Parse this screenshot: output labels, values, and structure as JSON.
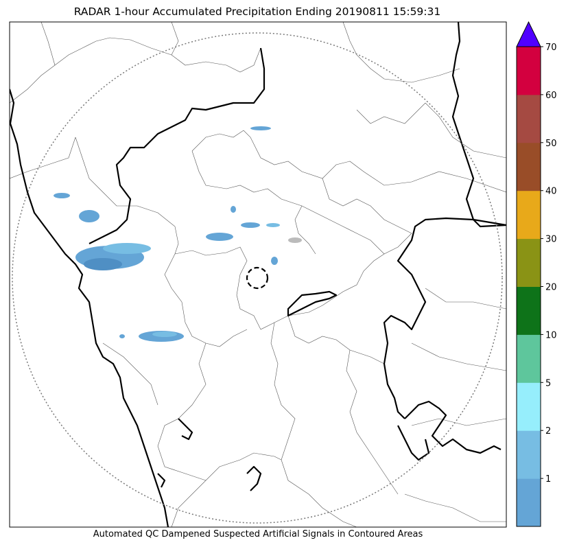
{
  "title": "RADAR 1-hour Accumulated Precipitation Ending 20190811 15:59:31",
  "footer": "Automated QC Dampened Suspected Artificial Signals in Contoured Areas",
  "colorbar": {
    "labels": [
      "1",
      "2",
      "5",
      "10",
      "20",
      "30",
      "40",
      "50",
      "60",
      "70"
    ],
    "colors": [
      "#64a5d6",
      "#77bde3",
      "#96eefc",
      "#5ec69c",
      "#0e7319",
      "#8a9315",
      "#e8a91a",
      "#994d28",
      "#a54a42",
      "#d3003f"
    ],
    "extend_color": "#5000ff"
  }
}
